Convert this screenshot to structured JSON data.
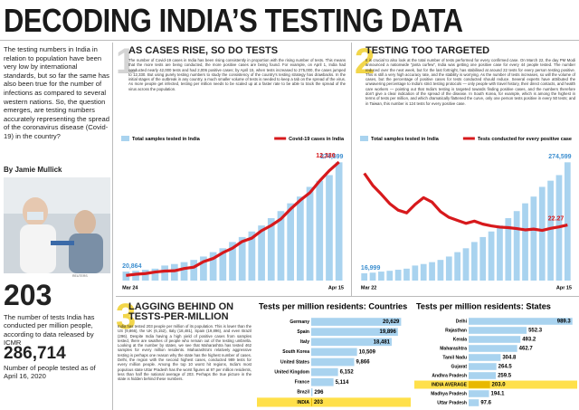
{
  "header": {
    "title": "DECODING INDIA’S TESTING DATA"
  },
  "intro": {
    "text": "The testing numbers in India in relation to population have been very low by international standards, but so far the same has also been true for the number of infections as compared to several western nations. So, the question emerges, are testing numbers accurately representing the spread of the coronavirus disease (Covid-19) in the country?",
    "byline": "By Jamie Mullick",
    "photo_credit": "REUTERS"
  },
  "stats": [
    {
      "value": "203",
      "text": "The number of tests India has conducted per million people, according to data released by ICMR"
    },
    {
      "value": "286,714",
      "text": "Number of people tested as of April 16, 2020"
    }
  ],
  "panels": [
    {
      "number": "1",
      "title": "AS CASES RISE, SO DO TESTS",
      "text": "The number of Covid-19 cases in India has been rising consistently in proportion with the rising number of tests. This means that the more tests are being conducted, the more positive cases are being found. For example, on April 1, India had conducted nearly 42,000 tests and had 2,006 positive cases; by April 15, when tests increased to 275,000, the cases jumped to 12,330. But using purely testing numbers to study the consistency of the country's testing strategy has drawbacks. In the initial stages of the outbreak in any country, a much smaller volume of tests is needed to keep a tab on the spread of the virus. As more people get infected, testing per million needs to be scaled up at a faster rate to be able to track the spread of the virus across the population."
    },
    {
      "number": "2",
      "title": "TESTING TOO TARGETED",
      "text": "It is crucial to also look at the total number of tests performed for every confirmed case. On March 22, the day PM Modi announced a nationwide “janta curfew”, India was getting one positive case for every 44 people tested. The number reduced over the next week, but for the last fortnight, has stabilised at around 22 tests for every person testing positive. This is still a very high accuracy rate, and the stability is worrying. As the number of tests increases, so will the volume of cases, but the percentage of positive cases for tests conducted should reduce. Several experts have attributed the unwavering percentage to India's strict testing protocols — only people with travel history, their direct contacts, and health care workers — pointing out that India's testing is targeted towards finding positive cases, and the numbers therefore don't give a clear indication of the spread of the disease. In South Korea, for example, which is among the highest in terms of tests per million, and which dramatically flattened the curve, only one person tests positive in every 50 tests; and in Taiwan, this number is 124 tests for every positive case."
    },
    {
      "number": "3",
      "title": "LAGGING BEHIND ON TESTS-PER-MILLION",
      "text": "India has tested 203 people per million of its population. This is lower than the US (9,866), the UK (6,152), Italy (18,481), Spain (19,896), and even Brazil (296). Despite India having a high yield of positive cases from samples tested, there are swathes of people who remain out of the testing umbrella. Looking at the number by states, we see that Maharashtra has tested 462 samples for every million residents. Maharashtra's relatively aggressive testing is perhaps one reason why the state has the highest number of cases. Delhi, the region with the second highest cases, conducted 989 tests for every million people. Among the top 10 worst hit regions, India's most populous state Uttar Pradesh has the worst figures at 97 per million residents, less than half the national average of 203. Perhaps the true picture in the state is hidden behind these numbers."
    }
  ],
  "chart_data": [
    {
      "type": "bar",
      "categories": [
        "Mar 24",
        null,
        null,
        null,
        null,
        null,
        null,
        null,
        null,
        null,
        null,
        null,
        null,
        null,
        null,
        null,
        null,
        null,
        null,
        null,
        null,
        null,
        "Apr 15"
      ],
      "ylim": [
        0,
        290000
      ],
      "y2lim": [
        0,
        13000
      ],
      "series": [
        {
          "name": "Total samples tested in India",
          "color": "#a9d3ef",
          "label_color": "#3d8fd0",
          "values": [
            20864,
            22694,
            25144,
            27688,
            34931,
            38442,
            42788,
            47951,
            55851,
            66000,
            75000,
            89534,
            101068,
            114015,
            127919,
            144910,
            161330,
            179374,
            195000,
            217554,
            231902,
            244893,
            274599
          ],
          "value_labels": [
            "20,864",
            null,
            null,
            null,
            null,
            null,
            null,
            null,
            null,
            null,
            null,
            null,
            null,
            null,
            null,
            null,
            null,
            null,
            null,
            null,
            null,
            null,
            "274,599"
          ]
        },
        {
          "name": "Covid-19 cases in India",
          "color": "#d7191c",
          "type": "line",
          "axis": "y2",
          "values": [
            536,
            657,
            730,
            887,
            987,
            1024,
            1251,
            1397,
            1965,
            2301,
            2902,
            3374,
            4067,
            4421,
            5194,
            5734,
            6412,
            7447,
            8356,
            9152,
            10363,
            11439,
            12330
          ],
          "value_labels": [
            null,
            null,
            null,
            null,
            null,
            null,
            null,
            null,
            null,
            null,
            null,
            null,
            null,
            null,
            null,
            null,
            null,
            null,
            null,
            null,
            null,
            null,
            "12,330"
          ]
        }
      ]
    },
    {
      "type": "bar",
      "categories": [
        "Mar 22",
        null,
        null,
        null,
        null,
        null,
        null,
        null,
        null,
        null,
        null,
        null,
        null,
        null,
        null,
        null,
        null,
        null,
        null,
        null,
        null,
        null,
        null,
        null,
        "Apr 15"
      ],
      "ylim": [
        0,
        290000
      ],
      "y2lim": [
        0,
        50
      ],
      "series": [
        {
          "name": "Total samples tested in India",
          "color": "#a9d3ef",
          "label_color": "#3d8fd0",
          "values": [
            16999,
            18383,
            20864,
            22694,
            25144,
            27688,
            34931,
            38442,
            42788,
            47951,
            55851,
            66000,
            75000,
            89534,
            101068,
            114015,
            127919,
            144910,
            161330,
            179374,
            195000,
            217554,
            231902,
            244893,
            274599
          ],
          "value_labels": [
            "16,999",
            null,
            null,
            null,
            null,
            null,
            null,
            null,
            null,
            null,
            null,
            null,
            null,
            null,
            null,
            null,
            null,
            null,
            null,
            null,
            null,
            null,
            null,
            null,
            "274,599"
          ]
        },
        {
          "name": "Tests conducted for every positive case",
          "color": "#d7191c",
          "type": "line",
          "axis": "y2",
          "values": [
            42.93,
            38.1,
            34.6,
            30.8,
            28.2,
            27.1,
            30.5,
            33.2,
            31.4,
            27.6,
            25.3,
            24.1,
            22.9,
            23.8,
            22.6,
            21.9,
            21.4,
            21.2,
            20.8,
            20.3,
            20.6,
            20.1,
            20.9,
            21.5,
            22.27
          ],
          "value_labels": [
            null,
            null,
            null,
            null,
            null,
            null,
            null,
            null,
            null,
            null,
            null,
            null,
            null,
            null,
            null,
            null,
            null,
            null,
            null,
            null,
            null,
            null,
            null,
            null,
            "22.27"
          ]
        }
      ]
    },
    {
      "type": "hbar",
      "title": "Tests per million residents: Countries",
      "color": "#a9d3ef",
      "highlight": {
        "index": 8,
        "color": "#ffe04a"
      },
      "categories": [
        "Germany",
        "Spain",
        "Italy",
        "South Korea",
        "United States",
        "United Kingdom",
        "France",
        "Brazil",
        "INDIA"
      ],
      "values": [
        20629,
        19896,
        18481,
        10509,
        9866,
        6152,
        5114,
        296,
        203
      ],
      "value_labels": [
        "20,629",
        "19,896",
        "18,481",
        "10,509",
        "9,866",
        "6,152",
        "5,114",
        null,
        null
      ],
      "xlim": [
        0,
        22000
      ]
    },
    {
      "type": "hbar",
      "title": "Tests per million residents: States",
      "color": "#a9d3ef",
      "highlight": {
        "index": 7,
        "color": "#ffe04a"
      },
      "categories": [
        "Delhi",
        "Rajasthan",
        "Kerala",
        "Maharashtra",
        "Tamil Nadu",
        "Gujarat",
        "Andhra Pradesh",
        "INDIA AVERAGE",
        "Madhya Pradesh",
        "Uttar Pradesh"
      ],
      "values": [
        989.3,
        552.3,
        493.2,
        462.7,
        304.8,
        264.5,
        259.5,
        203,
        194.1,
        97.6
      ],
      "value_labels": [
        null,
        null,
        null,
        null,
        null,
        null,
        null,
        "203.0",
        null,
        null
      ],
      "xlim": [
        0,
        1000
      ]
    }
  ]
}
